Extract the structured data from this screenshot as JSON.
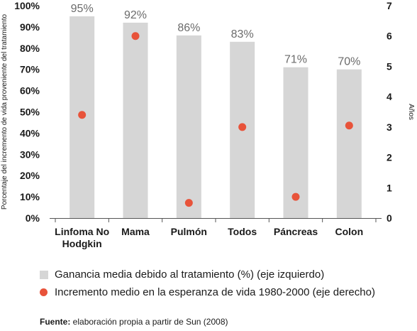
{
  "chart_data": {
    "type": "bar",
    "categories": [
      "Linfoma No\nHodgkin",
      "Mama",
      "Pulmón",
      "Todos",
      "Páncreas",
      "Colon"
    ],
    "series": [
      {
        "name": "Ganancia media debido al tratamiento (%) (eje izquierdo)",
        "type": "bar",
        "axis": "left",
        "values": [
          95,
          92,
          86,
          83,
          71,
          70
        ],
        "labels": [
          "95%",
          "92%",
          "86%",
          "83%",
          "71%",
          "70%"
        ],
        "color": "#d6d6d6"
      },
      {
        "name": "Incremento medio en la esperanza de vida 1980-2000 (eje derecho)",
        "type": "scatter",
        "axis": "right",
        "values": [
          3.4,
          6.0,
          0.5,
          3.0,
          0.7,
          3.05
        ],
        "color": "#e8533a"
      }
    ],
    "ylabel": "Porcentaje del incremento de vida proveniente del tratamiento",
    "y2label": "Años",
    "ylim": [
      0,
      100
    ],
    "y2lim": [
      0,
      7
    ],
    "yticks": [
      "0%",
      "10%",
      "20%",
      "30%",
      "40%",
      "50%",
      "60%",
      "70%",
      "80%",
      "90%",
      "100%"
    ],
    "y2ticks": [
      "0",
      "1",
      "2",
      "3",
      "4",
      "5",
      "6",
      "7"
    ],
    "grid": false,
    "legend_position": "bottom"
  },
  "legend": {
    "bar_label": "Ganancia media debido al tratamiento (%) (eje izquierdo)",
    "dot_label": "Incremento medio en la esperanza de vida 1980-2000 (eje derecho)"
  },
  "source": {
    "prefix": "Fuente:",
    "text": " elaboración propia a partir de Sun (2008)"
  }
}
